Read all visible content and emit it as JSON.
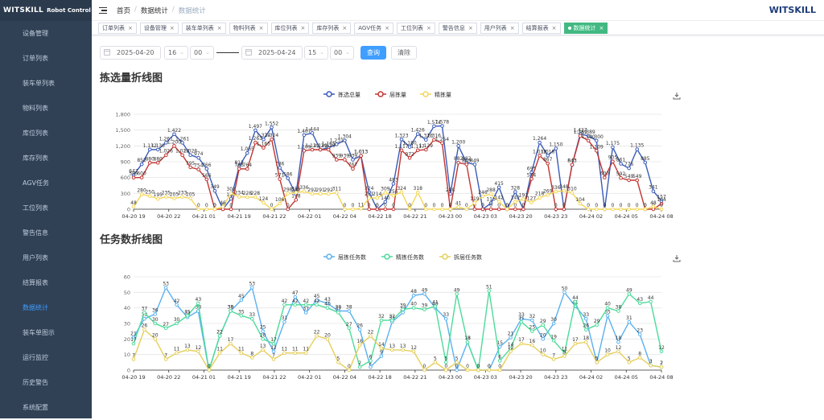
{
  "app": {
    "logo": "WITSKILL",
    "logo_sub": "Robot Control System",
    "brand_right": "WITSKILL"
  },
  "sidebar": {
    "items": [
      {
        "label": "设备管理"
      },
      {
        "label": "订单列表"
      },
      {
        "label": "装车单列表"
      },
      {
        "label": "物料列表"
      },
      {
        "label": "库位列表"
      },
      {
        "label": "库存列表"
      },
      {
        "label": "AGV任务"
      },
      {
        "label": "工位列表"
      },
      {
        "label": "警告信息"
      },
      {
        "label": "用户列表"
      },
      {
        "label": "结算报表"
      },
      {
        "label": "数据统计",
        "active": true
      },
      {
        "label": "装车单图示"
      },
      {
        "label": "运行监控"
      },
      {
        "label": "历史警告"
      },
      {
        "label": "系统配置"
      }
    ]
  },
  "breadcrumb": [
    "首页",
    "数据统计",
    "数据统计"
  ],
  "tags": [
    {
      "label": "订单列表"
    },
    {
      "label": "设备管理"
    },
    {
      "label": "装车单列表"
    },
    {
      "label": "物料列表"
    },
    {
      "label": "库位列表"
    },
    {
      "label": "库存列表"
    },
    {
      "label": "AGV任务"
    },
    {
      "label": "工位列表"
    },
    {
      "label": "警告信息"
    },
    {
      "label": "用户列表"
    },
    {
      "label": "结算报表"
    },
    {
      "label": "数据统计",
      "active": true
    }
  ],
  "filters": {
    "start_date": "2025-04-20",
    "start_hour": "16",
    "start_min": "00",
    "end_date": "2025-04-24",
    "end_hour": "15",
    "end_min": "00",
    "query": "查询",
    "clear": "清除"
  },
  "colors": {
    "sidebar_bg": "#304156",
    "accent": "#409eff",
    "tag_active": "#42b983"
  },
  "chart_data": [
    {
      "type": "line",
      "title": "拣选量折线图",
      "x_tick_labels": [
        "04-20 19",
        "04-20 22",
        "04-21 01",
        "04-21 19",
        "04-21 22",
        "04-22 01",
        "04-22 04",
        "04-22 18",
        "04-22 21",
        "04-23 00",
        "04-23 03",
        "04-23 20",
        "04-23 23",
        "04-24 02",
        "04-24 05",
        "04-24 08"
      ],
      "ylim": [
        0,
        1800
      ],
      "y_ticks": [
        0,
        300,
        600,
        900,
        1200,
        1500,
        1800
      ],
      "grid": true,
      "legend": "top-center",
      "series": [
        {
          "name": "拣选总量",
          "color": "#3a5bb8",
          "values": [
            647,
            852,
            1132,
            1130,
            1261,
            1422,
            1261,
            1026,
            974,
            766,
            349,
            0,
            197,
            812,
            1065,
            1497,
            1324,
            1552,
            786,
            586,
            281,
            1407,
            1444,
            1129,
            1165,
            1231,
            1304,
            939,
            1013,
            324,
            0,
            140,
            483,
            1323,
            1180,
            1426,
            1316,
            1574,
            1578,
            288,
            1200,
            882,
            849,
            0,
            113,
            415,
            0,
            328,
            0,
            695,
            1264,
            1018,
            1150,
            0,
            843,
            1427,
            1389,
            1300,
            0,
            1175,
            861,
            776,
            1135,
            885,
            341,
            157
          ]
        },
        {
          "name": "层拣量",
          "color": "#c23531",
          "values": [
            599,
            600,
            880,
            880,
            1026,
            1200,
            1026,
            795,
            754,
            566,
            0,
            0,
            0,
            766,
            764,
            1263,
            1165,
            1324,
            571,
            0,
            178,
            1109,
            1129,
            1129,
            1129,
            939,
            939,
            767,
            1013,
            0,
            0,
            0,
            0,
            1117,
            972,
            1117,
            1129,
            1316,
            1254,
            0,
            882,
            849,
            0,
            0,
            0,
            0,
            0,
            0,
            0,
            574,
            1018,
            867,
            0,
            0,
            843,
            1389,
            1300,
            1109,
            600,
            905,
            592,
            549,
            549,
            0,
            0,
            104
          ]
        },
        {
          "name": "精拣量",
          "color": "#f3d659",
          "values": [
            48,
            280,
            250,
            195,
            235,
            205,
            233,
            205,
            0,
            0,
            0,
            46,
            302,
            234,
            228,
            228,
            124,
            0,
            106,
            298,
            315,
            336,
            292,
            291,
            292,
            311,
            0,
            0,
            11,
            211,
            214,
            309,
            256,
            324,
            0,
            318,
            0,
            0,
            0,
            0,
            41,
            0,
            119,
            246,
            288,
            142,
            0,
            142,
            191,
            127,
            218,
            269,
            336,
            348,
            310,
            104,
            0,
            0,
            0,
            0,
            0,
            0,
            0,
            0,
            48,
            0
          ]
        }
      ]
    },
    {
      "type": "line",
      "title": "任务数折线图",
      "x_tick_labels": [
        "04-20 19",
        "04-20 22",
        "04-21 01",
        "04-21 19",
        "04-21 22",
        "04-22 01",
        "04-22 04",
        "04-22 18",
        "04-22 21",
        "04-23 00",
        "04-23 03",
        "04-23 20",
        "04-23 23",
        "04-24 02",
        "04-24 05",
        "04-24 08"
      ],
      "ylim": [
        0,
        60
      ],
      "y_ticks": [
        0,
        10,
        20,
        30,
        40,
        50,
        60
      ],
      "grid": true,
      "legend": "top-center",
      "series": [
        {
          "name": "层拣任务数",
          "color": "#5ab1ef",
          "values": [
            21,
            33,
            36,
            53,
            42,
            34,
            38,
            0,
            22,
            38,
            45,
            53,
            25,
            12,
            31,
            47,
            37,
            45,
            43,
            38,
            38,
            26,
            2,
            9,
            31,
            37,
            48,
            49,
            40,
            33,
            0,
            18,
            0,
            0,
            15,
            21,
            33,
            32,
            20,
            30,
            50,
            41,
            33,
            5,
            35,
            18,
            31,
            23,
            3,
            2
          ]
        },
        {
          "name": "精拣任务数",
          "color": "#4cdb9a",
          "values": [
            17,
            37,
            30,
            27,
            30,
            35,
            43,
            0,
            22,
            38,
            35,
            33,
            20,
            17,
            42,
            42,
            42,
            42,
            40,
            37,
            27,
            2,
            6,
            32,
            32,
            39,
            40,
            39,
            41,
            5,
            49,
            18,
            0,
            51,
            6,
            14,
            31,
            25,
            29,
            19,
            11,
            44,
            26,
            29,
            40,
            38,
            49,
            43,
            44,
            12
          ]
        },
        {
          "name": "拆层任务数",
          "color": "#e5cf5b",
          "values": [
            7,
            26,
            20,
            7,
            11,
            13,
            12,
            0,
            11,
            17,
            11,
            8,
            13,
            7,
            11,
            11,
            11,
            22,
            20,
            5,
            0,
            16,
            22,
            14,
            13,
            13,
            12,
            0,
            5,
            0,
            5,
            0,
            0,
            0,
            0,
            12,
            17,
            16,
            10,
            7,
            9,
            17,
            18,
            5,
            10,
            12,
            5,
            8,
            3,
            2
          ]
        }
      ]
    }
  ]
}
